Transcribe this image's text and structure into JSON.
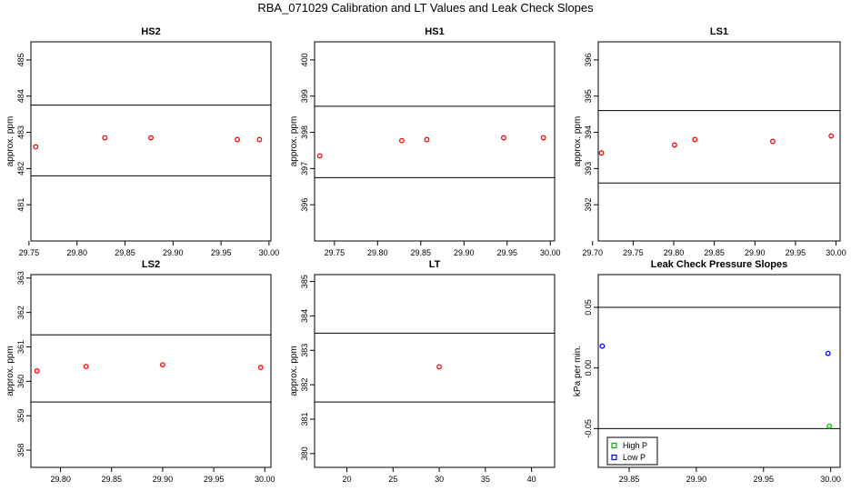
{
  "title": "RBA_071029  Calibration and LT Values and Leak Check Slopes",
  "chart_data": [
    {
      "type": "scatter",
      "title": "HS2",
      "ylabel": "approx. ppm",
      "xlim": [
        29.752,
        30.002
      ],
      "ylim": [
        480.0,
        485.5
      ],
      "xticks": [
        "29.75",
        "29.80",
        "29.85",
        "29.90",
        "29.95",
        "30.00"
      ],
      "yticks": [
        "481",
        "482",
        "483",
        "484",
        "485"
      ],
      "hlines": [
        481.8,
        483.75
      ],
      "series": [
        {
          "color": "#ff0000",
          "marker": "circle",
          "points": [
            [
              29.757,
              482.6
            ],
            [
              29.829,
              482.85
            ],
            [
              29.877,
              482.85
            ],
            [
              29.967,
              482.8
            ],
            [
              29.99,
              482.8
            ]
          ]
        }
      ]
    },
    {
      "type": "scatter",
      "title": "HS1",
      "ylabel": "approx. ppm",
      "xlim": [
        29.727,
        30.005
      ],
      "ylim": [
        395.0,
        400.5
      ],
      "xticks": [
        "29.75",
        "29.80",
        "29.85",
        "29.90",
        "29.95",
        "30.00"
      ],
      "yticks": [
        "396",
        "397",
        "398",
        "399",
        "400"
      ],
      "hlines": [
        396.75,
        398.72
      ],
      "series": [
        {
          "color": "#ff0000",
          "marker": "circle",
          "points": [
            [
              29.733,
              397.35
            ],
            [
              29.828,
              397.77
            ],
            [
              29.857,
              397.8
            ],
            [
              29.946,
              397.85
            ],
            [
              29.992,
              397.85
            ]
          ]
        }
      ]
    },
    {
      "type": "scatter",
      "title": "LS1",
      "ylabel": "approx. ppm",
      "xlim": [
        29.707,
        30.005
      ],
      "ylim": [
        391.0,
        396.5
      ],
      "xticks": [
        "29.70",
        "29.75",
        "29.80",
        "29.85",
        "29.90",
        "29.95",
        "30.00"
      ],
      "yticks": [
        "392",
        "393",
        "394",
        "395",
        "396"
      ],
      "hlines": [
        392.6,
        394.6
      ],
      "series": [
        {
          "color": "#ff0000",
          "marker": "circle",
          "points": [
            [
              29.711,
              393.43
            ],
            [
              29.801,
              393.65
            ],
            [
              29.826,
              393.8
            ],
            [
              29.922,
              393.75
            ],
            [
              29.994,
              393.9
            ]
          ]
        }
      ]
    },
    {
      "type": "scatter",
      "title": "LS2",
      "ylabel": "approx. ppm",
      "xlim": [
        29.771,
        30.006
      ],
      "ylim": [
        357.5,
        363.1
      ],
      "xticks": [
        "29.80",
        "29.85",
        "29.90",
        "29.95",
        "30.00"
      ],
      "yticks": [
        "358",
        "359",
        "360",
        "361",
        "362",
        "363"
      ],
      "hlines": [
        359.4,
        361.35
      ],
      "series": [
        {
          "color": "#ff0000",
          "marker": "circle",
          "points": [
            [
              29.777,
              360.3
            ],
            [
              29.825,
              360.43
            ],
            [
              29.9,
              360.48
            ],
            [
              29.996,
              360.4
            ]
          ]
        }
      ]
    },
    {
      "type": "scatter",
      "title": "LT",
      "ylabel": "approx. ppm",
      "xlim": [
        16.5,
        42.5
      ],
      "ylim": [
        379.6,
        385.2
      ],
      "xticks": [
        "20",
        "25",
        "30",
        "35",
        "40"
      ],
      "yticks": [
        "380",
        "381",
        "382",
        "383",
        "384",
        "385"
      ],
      "hlines": [
        381.5,
        383.5
      ],
      "series": [
        {
          "color": "#ff0000",
          "marker": "circle",
          "points": [
            [
              30.0,
              382.52
            ]
          ]
        }
      ]
    },
    {
      "type": "scatter",
      "title": "Leak Check Pressure Slopes",
      "ylabel": "kPa per min.",
      "xlim": [
        29.827,
        30.007
      ],
      "ylim": [
        -0.082,
        0.077
      ],
      "xticks": [
        "29.85",
        "29.90",
        "29.95",
        "30.00"
      ],
      "yticks": [
        "-0.05",
        "0.00",
        "0.05"
      ],
      "hlines": [
        -0.05,
        0.05
      ],
      "series": [
        {
          "name": "High P",
          "color": "#00bb00",
          "marker": "circle",
          "points": [
            [
              29.999,
              -0.048
            ]
          ]
        },
        {
          "name": "Low P",
          "color": "#0000ff",
          "marker": "circle",
          "points": [
            [
              29.83,
              0.018
            ],
            [
              29.998,
              0.012
            ]
          ]
        }
      ],
      "legend": "bottom-left"
    }
  ]
}
